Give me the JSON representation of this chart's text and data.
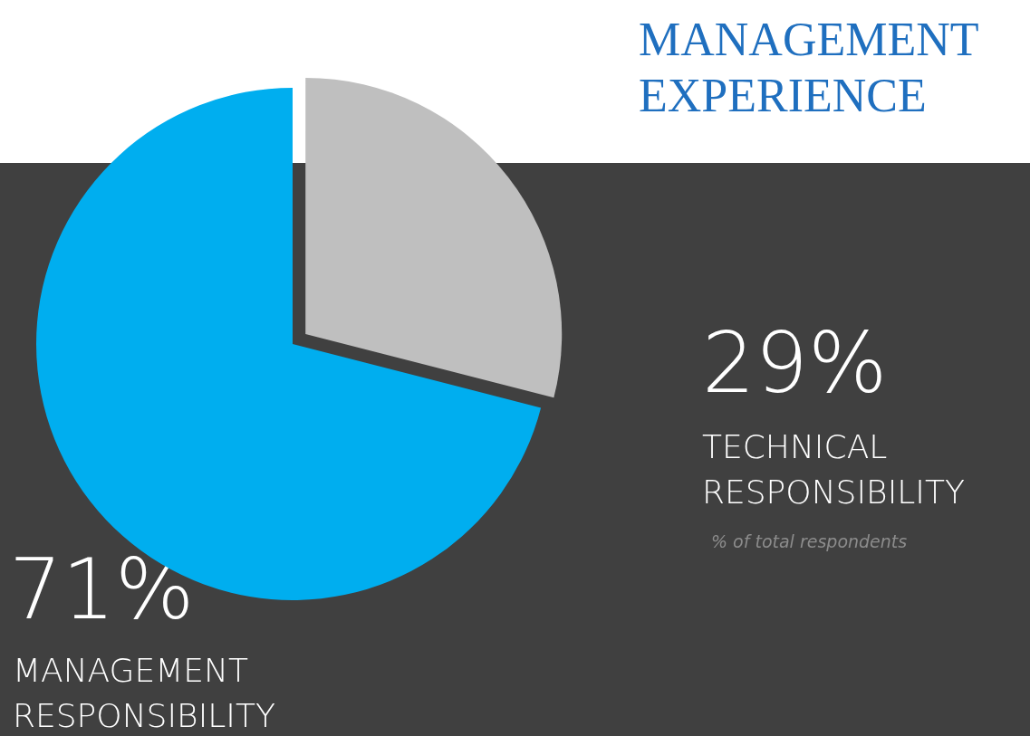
{
  "chart_data": {
    "type": "pie",
    "title": "MANAGEMENT EXPERIENCE",
    "categories": [
      "MANAGEMENT RESPONSIBILITY",
      "TECHNICAL RESPONSIBILITY"
    ],
    "values": [
      71,
      29
    ],
    "colors": [
      "#00aeef",
      "#bfbfbf"
    ],
    "value_labels": [
      "71%",
      "29%"
    ],
    "annotations": [
      "% of total respondents"
    ]
  }
}
